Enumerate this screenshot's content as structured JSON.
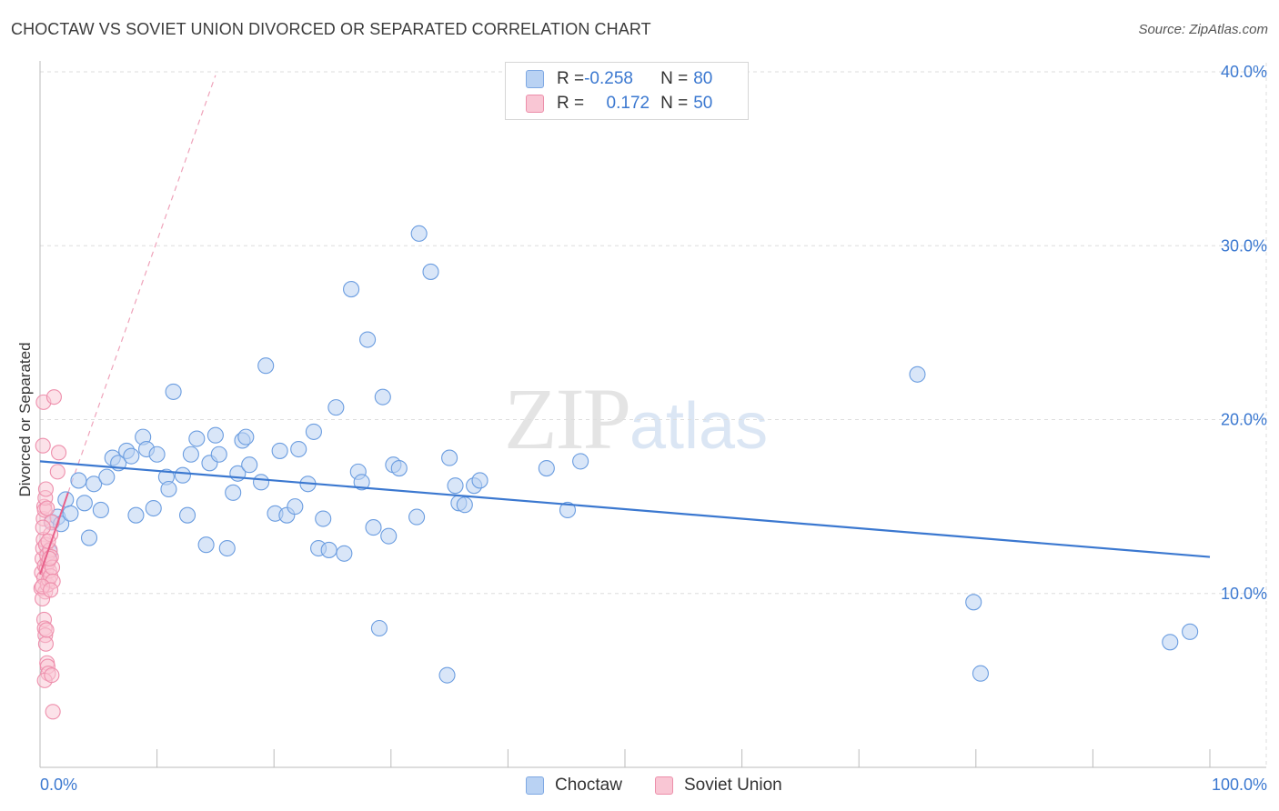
{
  "header": {
    "title": "CHOCTAW VS SOVIET UNION DIVORCED OR SEPARATED CORRELATION CHART",
    "source": "Source: ZipAtlas.com"
  },
  "watermark": {
    "zip": "ZIP",
    "atlas": "atlas"
  },
  "legend": {
    "rows": [
      {
        "r_label": "R = ",
        "r_value": "-0.258",
        "n_label": "N = ",
        "n_value": "80",
        "color": "#b9d2f3",
        "border": "#7ea8e3"
      },
      {
        "r_label": "R = ",
        "r_value": " 0.172",
        "n_label": "N = ",
        "n_value": "50",
        "color": "#f9c6d4",
        "border": "#ec8eaa"
      }
    ]
  },
  "bottom_legend": {
    "items": [
      "Choctaw",
      "Soviet Union"
    ]
  },
  "chart_data": {
    "type": "scatter",
    "title": "CHOCTAW VS SOVIET UNION DIVORCED OR SEPARATED CORRELATION CHART",
    "xlabel": "",
    "ylabel": "Divorced or Separated",
    "xlim": [
      0,
      100
    ],
    "ylim": [
      0,
      40
    ],
    "x_tick_labels": [
      "0.0%",
      "100.0%"
    ],
    "y_ticks": [
      10,
      20,
      30,
      40
    ],
    "y_tick_labels": [
      "10.0%",
      "20.0%",
      "30.0%",
      "40.0%"
    ],
    "grid": true,
    "legend_position": "top-center",
    "colors": {
      "choctaw": "#3b78d0",
      "choctaw_fill": "#b9d2f3",
      "soviet": "#e8608a",
      "soviet_fill": "#f9c6d4"
    },
    "series": [
      {
        "name": "Choctaw",
        "R": -0.258,
        "N": 80,
        "trend": {
          "x": [
            0,
            100
          ],
          "y": [
            17.6,
            12.1
          ]
        },
        "points": [
          [
            0.8,
            12.4
          ],
          [
            1.0,
            14.1
          ],
          [
            1.5,
            14.4
          ],
          [
            1.8,
            14.0
          ],
          [
            2.2,
            15.4
          ],
          [
            2.6,
            14.6
          ],
          [
            3.3,
            16.5
          ],
          [
            3.8,
            15.2
          ],
          [
            4.2,
            13.2
          ],
          [
            4.6,
            16.3
          ],
          [
            5.2,
            14.8
          ],
          [
            5.7,
            16.7
          ],
          [
            6.2,
            17.8
          ],
          [
            6.7,
            17.5
          ],
          [
            7.4,
            18.2
          ],
          [
            7.8,
            17.9
          ],
          [
            8.2,
            14.5
          ],
          [
            8.8,
            19.0
          ],
          [
            9.1,
            18.3
          ],
          [
            9.7,
            14.9
          ],
          [
            10.0,
            18.0
          ],
          [
            10.8,
            16.7
          ],
          [
            11.0,
            16.0
          ],
          [
            11.4,
            21.6
          ],
          [
            12.2,
            16.8
          ],
          [
            12.6,
            14.5
          ],
          [
            12.9,
            18.0
          ],
          [
            13.4,
            18.9
          ],
          [
            14.2,
            12.8
          ],
          [
            14.5,
            17.5
          ],
          [
            15.0,
            19.1
          ],
          [
            15.3,
            18.0
          ],
          [
            16.0,
            12.6
          ],
          [
            16.5,
            15.8
          ],
          [
            16.9,
            16.9
          ],
          [
            17.3,
            18.8
          ],
          [
            17.6,
            19.0
          ],
          [
            17.9,
            17.4
          ],
          [
            18.9,
            16.4
          ],
          [
            19.3,
            23.1
          ],
          [
            20.1,
            14.6
          ],
          [
            20.5,
            18.2
          ],
          [
            21.1,
            14.5
          ],
          [
            21.8,
            15.0
          ],
          [
            22.1,
            18.3
          ],
          [
            22.9,
            16.3
          ],
          [
            23.4,
            19.3
          ],
          [
            23.8,
            12.6
          ],
          [
            24.2,
            14.3
          ],
          [
            24.7,
            12.5
          ],
          [
            25.3,
            20.7
          ],
          [
            26.0,
            12.3
          ],
          [
            26.6,
            27.5
          ],
          [
            27.2,
            17.0
          ],
          [
            27.5,
            16.4
          ],
          [
            28.0,
            24.6
          ],
          [
            28.5,
            13.8
          ],
          [
            29.0,
            8.0
          ],
          [
            29.3,
            21.3
          ],
          [
            29.8,
            13.3
          ],
          [
            30.2,
            17.4
          ],
          [
            30.7,
            17.2
          ],
          [
            32.2,
            14.4
          ],
          [
            32.4,
            30.7
          ],
          [
            33.4,
            28.5
          ],
          [
            34.8,
            5.3
          ],
          [
            35.0,
            17.8
          ],
          [
            35.5,
            16.2
          ],
          [
            35.8,
            15.2
          ],
          [
            36.3,
            15.1
          ],
          [
            37.1,
            16.2
          ],
          [
            37.6,
            16.5
          ],
          [
            43.3,
            17.2
          ],
          [
            45.1,
            14.8
          ],
          [
            46.2,
            17.6
          ],
          [
            75.0,
            22.6
          ],
          [
            79.8,
            9.5
          ],
          [
            80.4,
            5.4
          ],
          [
            96.6,
            7.2
          ],
          [
            98.3,
            7.8
          ]
        ]
      },
      {
        "name": "Soviet Union",
        "R": 0.172,
        "N": 50,
        "trend": {
          "x": [
            0.0,
            2.4
          ],
          "y": [
            11.1,
            15.8
          ]
        },
        "trend_extended": {
          "x": [
            2.4,
            15.0
          ],
          "y": [
            15.8,
            39.8
          ]
        },
        "points": [
          [
            0.1,
            10.3
          ],
          [
            0.15,
            11.2
          ],
          [
            0.2,
            12.0
          ],
          [
            0.25,
            12.6
          ],
          [
            0.3,
            13.1
          ],
          [
            0.35,
            10.9
          ],
          [
            0.4,
            11.6
          ],
          [
            0.45,
            10.1
          ],
          [
            0.2,
            9.7
          ],
          [
            0.3,
            14.3
          ],
          [
            0.35,
            15.0
          ],
          [
            0.4,
            14.8
          ],
          [
            0.45,
            15.5
          ],
          [
            0.5,
            16.0
          ],
          [
            0.25,
            18.5
          ],
          [
            0.3,
            21.0
          ],
          [
            0.5,
            12.8
          ],
          [
            0.55,
            11.4
          ],
          [
            0.6,
            12.2
          ],
          [
            0.65,
            10.5
          ],
          [
            0.7,
            11.8
          ],
          [
            0.75,
            10.8
          ],
          [
            0.8,
            11.3
          ],
          [
            0.85,
            12.5
          ],
          [
            0.9,
            11.0
          ],
          [
            0.35,
            8.5
          ],
          [
            0.4,
            8.0
          ],
          [
            0.45,
            7.6
          ],
          [
            0.5,
            7.1
          ],
          [
            0.55,
            7.9
          ],
          [
            0.6,
            6.0
          ],
          [
            0.65,
            5.8
          ],
          [
            0.7,
            5.4
          ],
          [
            0.4,
            5.0
          ],
          [
            1.0,
            5.3
          ],
          [
            1.1,
            3.2
          ],
          [
            1.2,
            21.3
          ],
          [
            1.6,
            18.1
          ],
          [
            1.5,
            17.0
          ],
          [
            1.0,
            14.1
          ],
          [
            0.9,
            13.4
          ],
          [
            0.95,
            12.1
          ],
          [
            1.05,
            11.5
          ],
          [
            1.1,
            10.7
          ],
          [
            0.2,
            10.4
          ],
          [
            0.25,
            13.8
          ],
          [
            0.6,
            14.9
          ],
          [
            0.7,
            13.0
          ],
          [
            0.8,
            12.0
          ],
          [
            0.9,
            10.2
          ]
        ]
      }
    ]
  }
}
